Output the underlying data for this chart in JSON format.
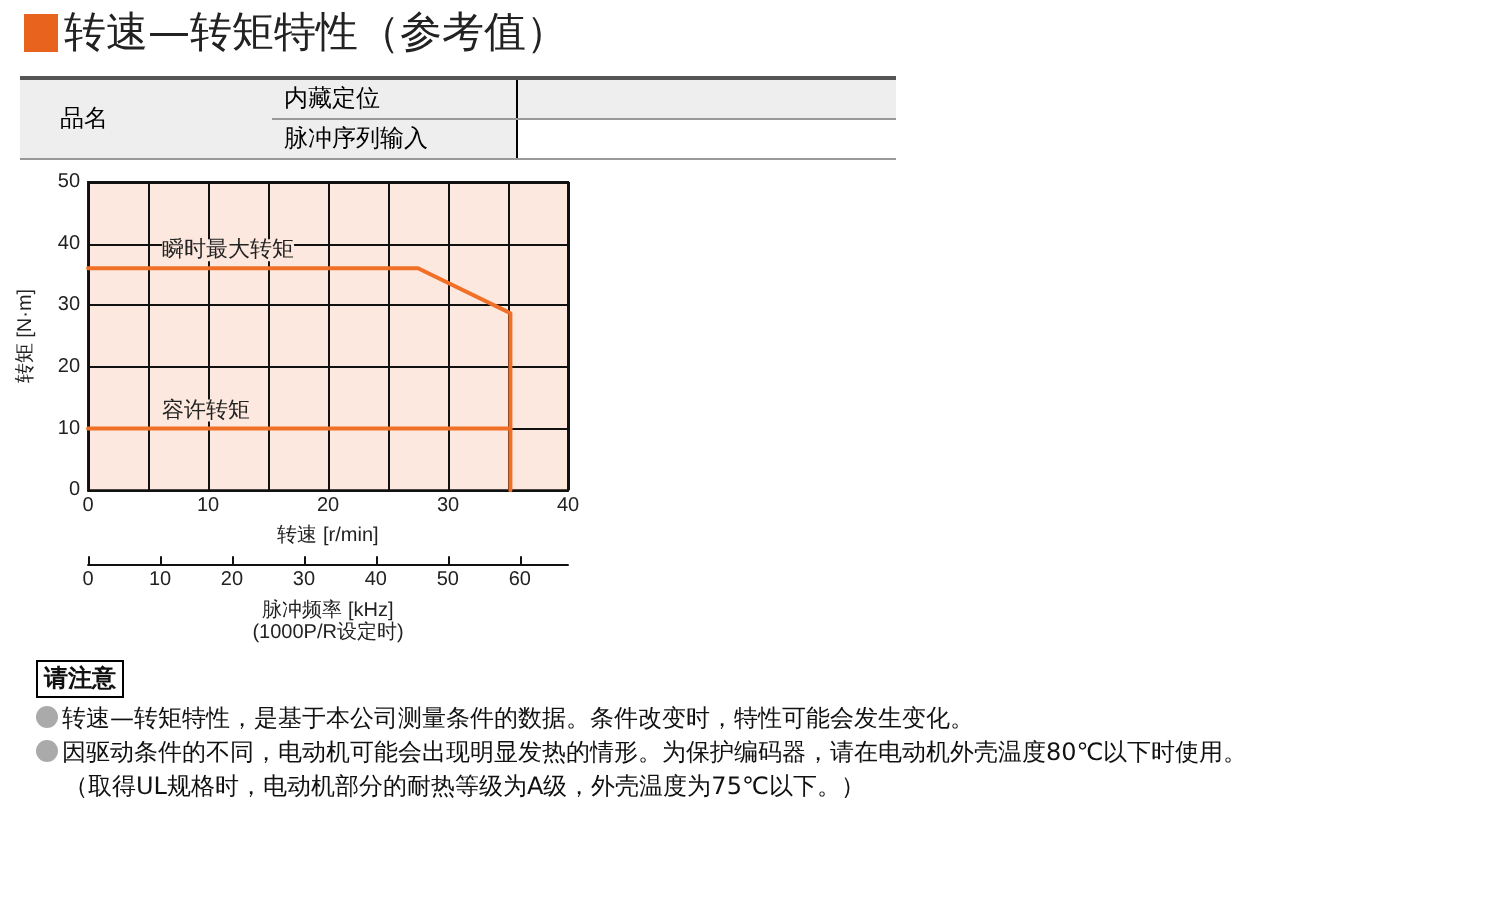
{
  "chart_data": {
    "type": "line",
    "title": "转速—转矩特性（参考值）",
    "xlabel": "转速 [r/min]",
    "ylabel": "转矩 [N·m]",
    "x2label": "脉冲频率 [kHz]\n(1000P/R设定时)",
    "xlim": [
      0,
      40
    ],
    "xticks": [
      0,
      {
        "value": 5,
        "label": null
      },
      10,
      {
        "value": 15,
        "label": null
      },
      20,
      {
        "value": 25,
        "label": null
      },
      30,
      {
        "value": 35,
        "label": null
      },
      40
    ],
    "ylim": [
      0,
      50
    ],
    "yticks": [
      0,
      10,
      20,
      30,
      40,
      50
    ],
    "x2lim": [
      0,
      66.7
    ],
    "x2ticks": [
      0,
      10,
      20,
      30,
      40,
      50,
      60
    ],
    "grid": true,
    "legend": false,
    "marker": "none",
    "line_style": "solid",
    "series": [
      {
        "name": "瞬时最大转矩",
        "color": "#f07028",
        "x": [
          0,
          27.5,
          35.2,
          35.2
        ],
        "values": [
          36,
          36,
          28.7,
          0
        ]
      },
      {
        "name": "容许转矩",
        "color": "#f07028",
        "x": [
          0,
          35.2
        ],
        "values": [
          10,
          10
        ]
      }
    ],
    "annotations": [
      "品名",
      "内藏定位",
      "脉冲序列输入",
      "请注意",
      "转速—转矩特性，是基于本公司测量条件的数据。条件改变时，特性可能会发生变化。",
      "因驱动条件的不同，电动机可能会出现明显发热的情形。为保护编码器，请在电动机外壳温度80℃以下时使用。",
      "（取得UL规格时，电动机部分的耐热等级为A级，外壳温度为75℃以下。）"
    ]
  }
}
